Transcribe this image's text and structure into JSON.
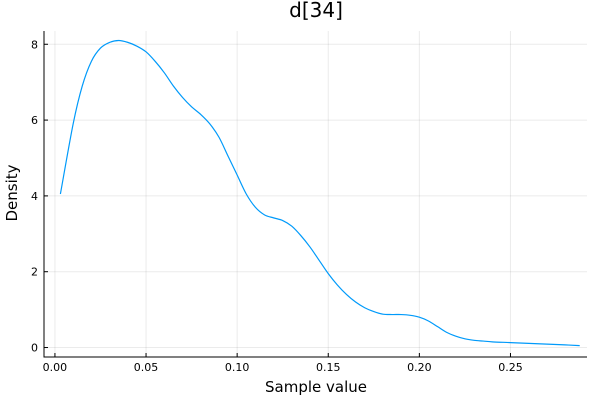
{
  "chart_data": {
    "type": "line",
    "title": "d[34]",
    "xlabel": "Sample value",
    "ylabel": "Density",
    "xlim": [
      -0.006,
      0.292
    ],
    "ylim": [
      -0.25,
      8.35
    ],
    "xticks": [
      0.0,
      0.05,
      0.1,
      0.15,
      0.2,
      0.25
    ],
    "xtick_labels": [
      "0.00",
      "0.05",
      "0.10",
      "0.15",
      "0.20",
      "0.25"
    ],
    "yticks": [
      0,
      2,
      4,
      6,
      8
    ],
    "ytick_labels": [
      "0",
      "2",
      "4",
      "6",
      "8"
    ],
    "grid": true,
    "legend": "none",
    "series_color": "#009AFA",
    "series": [
      {
        "x": [
          0.003,
          0.01,
          0.015,
          0.02,
          0.025,
          0.03,
          0.035,
          0.04,
          0.045,
          0.05,
          0.055,
          0.06,
          0.065,
          0.07,
          0.075,
          0.08,
          0.085,
          0.09,
          0.095,
          0.1,
          0.105,
          0.11,
          0.115,
          0.12,
          0.125,
          0.13,
          0.135,
          0.14,
          0.145,
          0.15,
          0.155,
          0.16,
          0.165,
          0.17,
          0.175,
          0.18,
          0.185,
          0.19,
          0.195,
          0.2,
          0.205,
          0.21,
          0.215,
          0.22,
          0.225,
          0.23,
          0.235,
          0.24,
          0.25,
          0.26,
          0.27,
          0.28,
          0.288
        ],
        "y": [
          4.05,
          5.9,
          6.9,
          7.55,
          7.9,
          8.05,
          8.1,
          8.05,
          7.95,
          7.8,
          7.55,
          7.25,
          6.9,
          6.6,
          6.35,
          6.15,
          5.9,
          5.55,
          5.05,
          4.55,
          4.05,
          3.7,
          3.5,
          3.42,
          3.35,
          3.2,
          2.95,
          2.65,
          2.3,
          1.95,
          1.65,
          1.4,
          1.2,
          1.05,
          0.95,
          0.88,
          0.87,
          0.87,
          0.85,
          0.8,
          0.7,
          0.55,
          0.4,
          0.3,
          0.23,
          0.19,
          0.17,
          0.15,
          0.13,
          0.11,
          0.09,
          0.07,
          0.05
        ]
      }
    ]
  }
}
